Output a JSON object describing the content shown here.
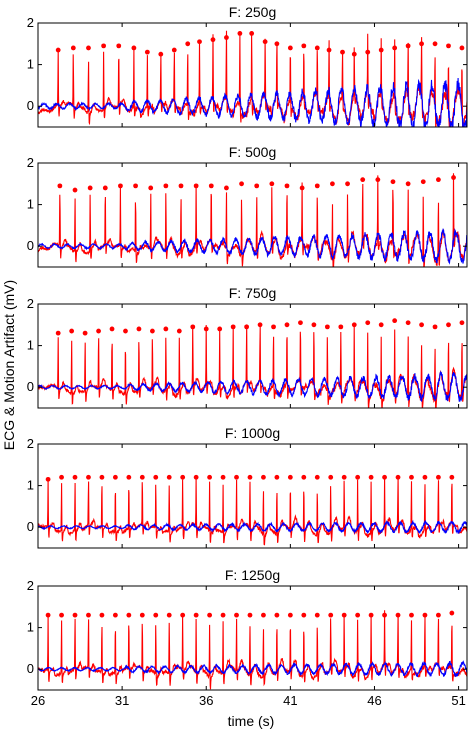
{
  "figure": {
    "ylabel": "ECG & Motion Artifact (mV)",
    "xlabel": "time (s)",
    "series_colors": {
      "ecg": "#ff0000",
      "motion_artifact": "#0000ff"
    }
  },
  "chart_data": [
    {
      "type": "line",
      "title": "F: 250g",
      "xlim": [
        26,
        51.5
      ],
      "ylim": [
        -0.5,
        2
      ],
      "xticks": [
        26,
        31,
        36,
        41,
        46,
        51
      ],
      "yticks": [
        0,
        1,
        2
      ],
      "show_xtick_labels": false,
      "peak_times": [
        27.2,
        28.1,
        29.0,
        29.9,
        30.8,
        31.7,
        32.5,
        33.3,
        34.1,
        34.9,
        35.6,
        36.4,
        37.2,
        38.0,
        38.7,
        39.5,
        40.2,
        41.0,
        41.8,
        42.6,
        43.3,
        44.1,
        44.8,
        45.6,
        46.4,
        47.2,
        48.0,
        48.8,
        49.6,
        50.4,
        51.2
      ],
      "peak_values": [
        1.35,
        1.4,
        1.4,
        1.45,
        1.45,
        1.4,
        1.3,
        1.25,
        1.35,
        1.5,
        1.55,
        1.6,
        1.65,
        1.75,
        1.75,
        1.55,
        1.5,
        1.4,
        1.45,
        1.4,
        1.35,
        1.3,
        1.25,
        1.3,
        1.35,
        1.4,
        1.45,
        1.5,
        1.5,
        1.45,
        1.4
      ],
      "artifact": {
        "base": 0.0,
        "amp_start": 0.1,
        "amp_end": 0.55,
        "onset": 31.2
      }
    },
    {
      "type": "line",
      "title": "F: 500g",
      "xlim": [
        26,
        51.5
      ],
      "ylim": [
        -0.5,
        2
      ],
      "xticks": [
        26,
        31,
        36,
        41,
        46,
        51
      ],
      "yticks": [
        0,
        1,
        2
      ],
      "show_xtick_labels": false,
      "peak_times": [
        27.3,
        28.2,
        29.1,
        30.0,
        30.9,
        31.8,
        32.7,
        33.6,
        34.5,
        35.4,
        36.3,
        37.2,
        38.1,
        39.0,
        39.9,
        40.8,
        41.7,
        42.6,
        43.5,
        44.4,
        45.3,
        46.2,
        47.1,
        48.0,
        48.9,
        49.8,
        50.7
      ],
      "peak_values": [
        1.45,
        1.35,
        1.4,
        1.4,
        1.45,
        1.45,
        1.4,
        1.45,
        1.45,
        1.45,
        1.45,
        1.4,
        1.5,
        1.45,
        1.5,
        1.45,
        1.4,
        1.45,
        1.5,
        1.5,
        1.6,
        1.6,
        1.55,
        1.5,
        1.55,
        1.6,
        1.65
      ],
      "artifact": {
        "base": 0.0,
        "amp_start": 0.08,
        "amp_end": 0.35,
        "onset": 31.2
      }
    },
    {
      "type": "line",
      "title": "F: 750g",
      "xlim": [
        26,
        51.5
      ],
      "ylim": [
        -0.5,
        2
      ],
      "xticks": [
        26,
        31,
        36,
        41,
        46,
        51
      ],
      "yticks": [
        0,
        1,
        2
      ],
      "show_xtick_labels": false,
      "peak_times": [
        27.2,
        28.0,
        28.8,
        29.6,
        30.4,
        31.2,
        32.0,
        32.8,
        33.6,
        34.4,
        35.2,
        36.0,
        36.8,
        37.6,
        38.4,
        39.2,
        40.0,
        40.8,
        41.6,
        42.4,
        43.2,
        44.0,
        44.8,
        45.6,
        46.4,
        47.2,
        48.0,
        48.8,
        49.6,
        50.4,
        51.2
      ],
      "peak_values": [
        1.3,
        1.35,
        1.3,
        1.35,
        1.4,
        1.35,
        1.4,
        1.35,
        1.4,
        1.35,
        1.45,
        1.4,
        1.4,
        1.45,
        1.45,
        1.5,
        1.45,
        1.5,
        1.55,
        1.5,
        1.45,
        1.45,
        1.5,
        1.55,
        1.5,
        1.6,
        1.55,
        1.5,
        1.45,
        1.5,
        1.55
      ],
      "artifact": {
        "base": 0.0,
        "amp_start": 0.06,
        "amp_end": 0.3,
        "onset": 31.2
      }
    },
    {
      "type": "line",
      "title": "F: 1000g",
      "xlim": [
        26,
        51.5
      ],
      "ylim": [
        -0.5,
        2
      ],
      "xticks": [
        26,
        31,
        36,
        41,
        46,
        51
      ],
      "yticks": [
        0,
        1,
        2
      ],
      "show_xtick_labels": false,
      "peak_times": [
        26.6,
        27.4,
        28.2,
        29.0,
        29.8,
        30.6,
        31.4,
        32.2,
        33.0,
        33.8,
        34.6,
        35.4,
        36.2,
        37.0,
        37.8,
        38.6,
        39.4,
        40.2,
        41.0,
        41.8,
        42.6,
        43.4,
        44.2,
        45.0,
        45.8,
        46.6,
        47.4,
        48.2,
        49.0,
        49.8,
        50.6
      ],
      "peak_values": [
        1.15,
        1.2,
        1.2,
        1.2,
        1.2,
        1.2,
        1.2,
        1.2,
        1.2,
        1.2,
        1.2,
        1.2,
        1.2,
        1.2,
        1.2,
        1.2,
        1.2,
        1.2,
        1.2,
        1.2,
        1.2,
        1.2,
        1.2,
        1.2,
        1.2,
        1.2,
        1.2,
        1.2,
        1.2,
        1.2,
        1.2
      ],
      "artifact": {
        "base": 0.0,
        "amp_start": 0.05,
        "amp_end": 0.12,
        "onset": 31.2
      }
    },
    {
      "type": "line",
      "title": "F: 1250g",
      "xlim": [
        26,
        51.5
      ],
      "ylim": [
        -0.5,
        2
      ],
      "xticks": [
        26,
        31,
        36,
        41,
        46,
        51
      ],
      "yticks": [
        0,
        1,
        2
      ],
      "show_xtick_labels": true,
      "peak_times": [
        26.6,
        27.4,
        28.2,
        29.0,
        29.8,
        30.6,
        31.4,
        32.2,
        33.0,
        33.8,
        34.6,
        35.4,
        36.2,
        37.0,
        37.8,
        38.6,
        39.4,
        40.2,
        41.0,
        41.8,
        42.6,
        43.4,
        44.2,
        45.0,
        45.8,
        46.6,
        47.4,
        48.2,
        49.0,
        49.8,
        50.6
      ],
      "peak_values": [
        1.3,
        1.3,
        1.3,
        1.3,
        1.3,
        1.3,
        1.3,
        1.3,
        1.3,
        1.3,
        1.3,
        1.3,
        1.3,
        1.3,
        1.3,
        1.3,
        1.3,
        1.3,
        1.3,
        1.3,
        1.3,
        1.3,
        1.3,
        1.3,
        1.3,
        1.3,
        1.3,
        1.3,
        1.3,
        1.3,
        1.35
      ],
      "artifact": {
        "base": 0.0,
        "amp_start": 0.06,
        "amp_end": 0.15,
        "onset": 31.2
      }
    }
  ]
}
